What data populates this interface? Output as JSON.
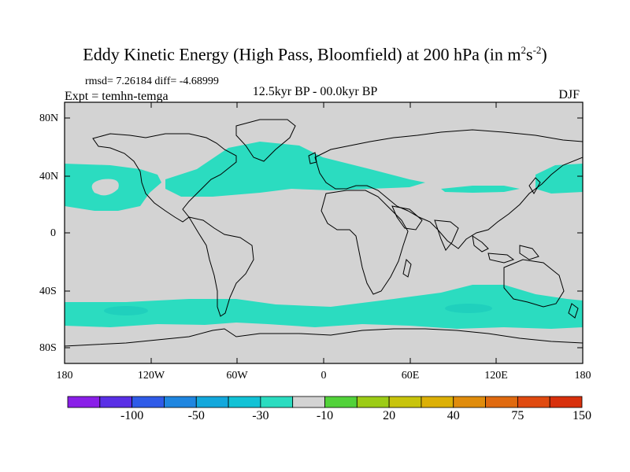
{
  "title": {
    "main": "Eddy Kinetic Energy (High Pass, Bloomfield) at 200 hPa (in m",
    "sup1": "2",
    "mid": "s",
    "sup2": "-2",
    "end": ")"
  },
  "stats": "rmsd= 7.26184 diff= -4.68999",
  "experiment": "Expt = temhn-temga",
  "subtitle": "12.5kyr BP - 00.0kyr BP",
  "season": "DJF",
  "y_ticks": [
    "80N",
    "40N",
    "0",
    "40S",
    "80S"
  ],
  "x_ticks": [
    "180",
    "120W",
    "60W",
    "0",
    "60E",
    "120E",
    "180"
  ],
  "colors": {
    "land_ocean_background": "#d3d3d3",
    "anomaly_band": "#2bdcc0",
    "anomaly_band_dark": "#20d0bd",
    "coastline": "#000000"
  },
  "colorbar": {
    "colors": [
      "#8a1fe8",
      "#5a2fe6",
      "#2f5be8",
      "#1f86e0",
      "#13a8dc",
      "#12c2d6",
      "#2bdcc0",
      "#d3d3d3",
      "#52d23a",
      "#9ccc16",
      "#c8c40c",
      "#dcb006",
      "#e08c0c",
      "#e06a10",
      "#e04a10",
      "#d8300c"
    ],
    "labels": [
      "-100",
      "-50",
      "-30",
      "-10",
      "20",
      "40",
      "75",
      "150"
    ]
  }
}
